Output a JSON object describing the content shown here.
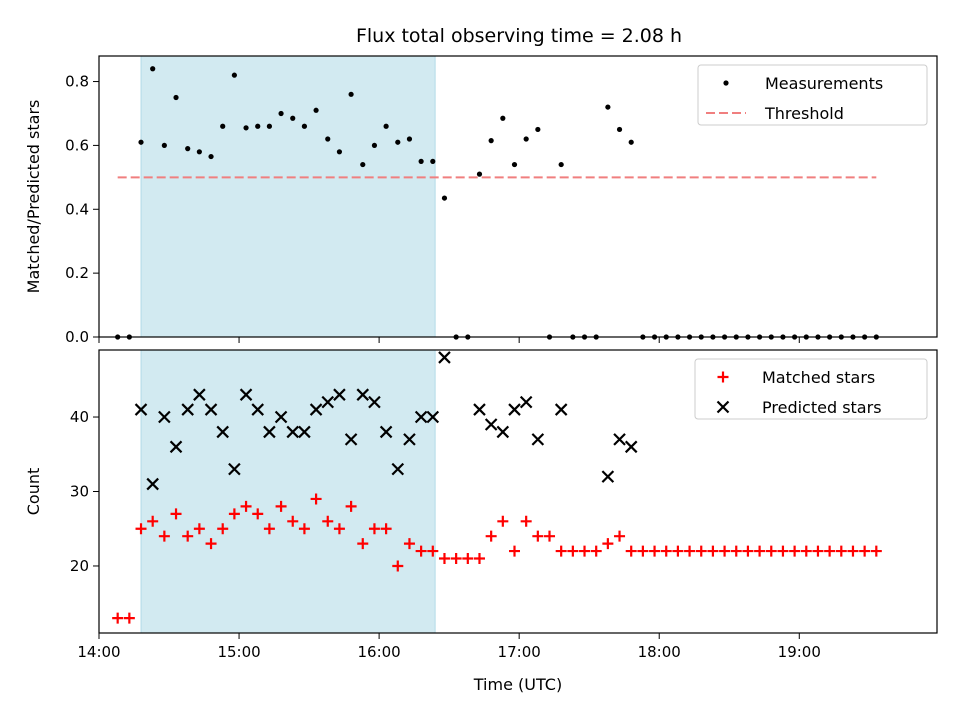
{
  "chart_data": [
    {
      "type": "scatter",
      "title": "Flux total observing time = 2.08 h",
      "xlabel": "",
      "ylabel": "Matched/Predicted stars",
      "ylim": [
        0,
        0.88
      ],
      "xlim": [
        "14:00",
        "19:59"
      ],
      "yticks": [
        "0.0",
        "0.2",
        "0.4",
        "0.6",
        "0.8"
      ],
      "shaded_interval": [
        "14:18",
        "16:24"
      ],
      "shaded_color": "#add8e6",
      "legend_position": "top-right",
      "series": [
        {
          "name": "Measurements",
          "marker": "dot",
          "color": "#000000",
          "points": [
            [
              "14:08",
              0.0
            ],
            [
              "14:13",
              0.0
            ],
            [
              "14:18",
              0.61
            ],
            [
              "14:23",
              0.84
            ],
            [
              "14:28",
              0.6
            ],
            [
              "14:33",
              0.75
            ],
            [
              "14:38",
              0.59
            ],
            [
              "14:43",
              0.58
            ],
            [
              "14:48",
              0.565
            ],
            [
              "14:53",
              0.66
            ],
            [
              "14:58",
              0.82
            ],
            [
              "15:03",
              0.655
            ],
            [
              "15:08",
              0.66
            ],
            [
              "15:13",
              0.66
            ],
            [
              "15:18",
              0.7
            ],
            [
              "15:23",
              0.685
            ],
            [
              "15:28",
              0.66
            ],
            [
              "15:33",
              0.71
            ],
            [
              "15:38",
              0.62
            ],
            [
              "15:43",
              0.58
            ],
            [
              "15:48",
              0.76
            ],
            [
              "15:53",
              0.54
            ],
            [
              "15:58",
              0.6
            ],
            [
              "16:03",
              0.66
            ],
            [
              "16:08",
              0.61
            ],
            [
              "16:13",
              0.62
            ],
            [
              "16:18",
              0.55
            ],
            [
              "16:23",
              0.55
            ],
            [
              "16:28",
              0.435
            ],
            [
              "16:33",
              0.0
            ],
            [
              "16:38",
              0.0
            ],
            [
              "16:43",
              0.51
            ],
            [
              "16:48",
              0.615
            ],
            [
              "16:53",
              0.685
            ],
            [
              "16:58",
              0.54
            ],
            [
              "17:03",
              0.62
            ],
            [
              "17:08",
              0.65
            ],
            [
              "17:13",
              0.0
            ],
            [
              "17:18",
              0.54
            ],
            [
              "17:23",
              0.0
            ],
            [
              "17:28",
              0.0
            ],
            [
              "17:33",
              0.0
            ],
            [
              "17:38",
              0.72
            ],
            [
              "17:43",
              0.65
            ],
            [
              "17:48",
              0.61
            ],
            [
              "17:53",
              0.0
            ],
            [
              "17:58",
              0.0
            ],
            [
              "18:03",
              0.0
            ],
            [
              "18:08",
              0.0
            ],
            [
              "18:13",
              0.0
            ],
            [
              "18:18",
              0.0
            ],
            [
              "18:23",
              0.0
            ],
            [
              "18:28",
              0.0
            ],
            [
              "18:33",
              0.0
            ],
            [
              "18:38",
              0.0
            ],
            [
              "18:43",
              0.0
            ],
            [
              "18:48",
              0.0
            ],
            [
              "18:53",
              0.0
            ],
            [
              "18:58",
              0.0
            ],
            [
              "19:03",
              0.0
            ],
            [
              "19:08",
              0.0
            ],
            [
              "19:13",
              0.0
            ],
            [
              "19:18",
              0.0
            ],
            [
              "19:23",
              0.0
            ],
            [
              "19:28",
              0.0
            ],
            [
              "19:33",
              0.0
            ]
          ]
        },
        {
          "name": "Threshold",
          "marker": "dashed-line",
          "color": "#f07f7f",
          "value": 0.5,
          "range": [
            "14:08",
            "19:33"
          ]
        }
      ]
    },
    {
      "type": "scatter",
      "title": "",
      "xlabel": "Time (UTC)",
      "ylabel": "Count",
      "ylim": [
        11,
        49
      ],
      "xlim": [
        "14:00",
        "19:59"
      ],
      "yticks": [
        "20",
        "30",
        "40"
      ],
      "xticks": [
        "14:00",
        "15:00",
        "16:00",
        "17:00",
        "18:00",
        "19:00"
      ],
      "shaded_interval": [
        "14:18",
        "16:24"
      ],
      "shaded_color": "#add8e6",
      "legend_position": "top-right",
      "series": [
        {
          "name": "Matched stars",
          "marker": "plus",
          "color": "#ff0000",
          "points": [
            [
              "14:08",
              13
            ],
            [
              "14:13",
              13
            ],
            [
              "14:18",
              25
            ],
            [
              "14:23",
              26
            ],
            [
              "14:28",
              24
            ],
            [
              "14:33",
              27
            ],
            [
              "14:38",
              24
            ],
            [
              "14:43",
              25
            ],
            [
              "14:48",
              23
            ],
            [
              "14:53",
              25
            ],
            [
              "14:58",
              27
            ],
            [
              "15:03",
              28
            ],
            [
              "15:08",
              27
            ],
            [
              "15:13",
              25
            ],
            [
              "15:18",
              28
            ],
            [
              "15:23",
              26
            ],
            [
              "15:28",
              25
            ],
            [
              "15:33",
              29
            ],
            [
              "15:38",
              26
            ],
            [
              "15:43",
              25
            ],
            [
              "15:48",
              28
            ],
            [
              "15:53",
              23
            ],
            [
              "15:58",
              25
            ],
            [
              "16:03",
              25
            ],
            [
              "16:08",
              20
            ],
            [
              "16:13",
              23
            ],
            [
              "16:18",
              22
            ],
            [
              "16:23",
              22
            ],
            [
              "16:28",
              21
            ],
            [
              "16:33",
              21
            ],
            [
              "16:38",
              21
            ],
            [
              "16:43",
              21
            ],
            [
              "16:48",
              24
            ],
            [
              "16:53",
              26
            ],
            [
              "16:58",
              22
            ],
            [
              "17:03",
              26
            ],
            [
              "17:08",
              24
            ],
            [
              "17:13",
              24
            ],
            [
              "17:18",
              22
            ],
            [
              "17:23",
              22
            ],
            [
              "17:28",
              22
            ],
            [
              "17:33",
              22
            ],
            [
              "17:38",
              23
            ],
            [
              "17:43",
              24
            ],
            [
              "17:48",
              22
            ],
            [
              "17:53",
              22
            ],
            [
              "17:58",
              22
            ],
            [
              "18:03",
              22
            ],
            [
              "18:08",
              22
            ],
            [
              "18:13",
              22
            ],
            [
              "18:18",
              22
            ],
            [
              "18:23",
              22
            ],
            [
              "18:28",
              22
            ],
            [
              "18:33",
              22
            ],
            [
              "18:38",
              22
            ],
            [
              "18:43",
              22
            ],
            [
              "18:48",
              22
            ],
            [
              "18:53",
              22
            ],
            [
              "18:58",
              22
            ],
            [
              "19:03",
              22
            ],
            [
              "19:08",
              22
            ],
            [
              "19:13",
              22
            ],
            [
              "19:18",
              22
            ],
            [
              "19:23",
              22
            ],
            [
              "19:28",
              22
            ],
            [
              "19:33",
              22
            ]
          ]
        },
        {
          "name": "Predicted stars",
          "marker": "x",
          "color": "#000000",
          "points": [
            [
              "14:18",
              41
            ],
            [
              "14:23",
              31
            ],
            [
              "14:28",
              40
            ],
            [
              "14:33",
              36
            ],
            [
              "14:38",
              41
            ],
            [
              "14:43",
              43
            ],
            [
              "14:48",
              41
            ],
            [
              "14:53",
              38
            ],
            [
              "14:58",
              33
            ],
            [
              "15:03",
              43
            ],
            [
              "15:08",
              41
            ],
            [
              "15:13",
              38
            ],
            [
              "15:18",
              40
            ],
            [
              "15:23",
              38
            ],
            [
              "15:28",
              38
            ],
            [
              "15:33",
              41
            ],
            [
              "15:38",
              42
            ],
            [
              "15:43",
              43
            ],
            [
              "15:48",
              37
            ],
            [
              "15:53",
              43
            ],
            [
              "15:58",
              42
            ],
            [
              "16:03",
              38
            ],
            [
              "16:08",
              33
            ],
            [
              "16:13",
              37
            ],
            [
              "16:18",
              40
            ],
            [
              "16:23",
              40
            ],
            [
              "16:28",
              48
            ],
            [
              "16:43",
              41
            ],
            [
              "16:48",
              39
            ],
            [
              "16:53",
              38
            ],
            [
              "16:58",
              41
            ],
            [
              "17:03",
              42
            ],
            [
              "17:08",
              37
            ],
            [
              "17:18",
              41
            ],
            [
              "17:38",
              32
            ],
            [
              "17:43",
              37
            ],
            [
              "17:48",
              36
            ]
          ]
        }
      ]
    }
  ]
}
